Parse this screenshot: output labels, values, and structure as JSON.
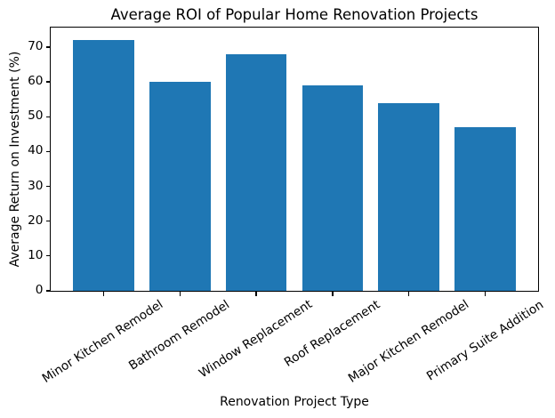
{
  "chart_data": {
    "type": "bar",
    "title": "Average ROI of Popular Home Renovation Projects",
    "xlabel": "Renovation Project Type",
    "ylabel": "Average Return on Investment (%)",
    "categories": [
      "Minor Kitchen Remodel",
      "Bathroom Remodel",
      "Window Replacement",
      "Roof Replacement",
      "Major Kitchen Remodel",
      "Primary Suite Addition"
    ],
    "values": [
      72,
      60,
      68,
      59,
      54,
      47
    ],
    "ylim": [
      0,
      75.6
    ],
    "yticks": [
      0,
      10,
      20,
      30,
      40,
      50,
      60,
      70
    ],
    "bar_color": "#1f77b4",
    "bar_width_fraction": 0.8,
    "x_tick_rotation_deg": 33,
    "grid": false,
    "legend": "none",
    "spine_color": "#000000"
  }
}
